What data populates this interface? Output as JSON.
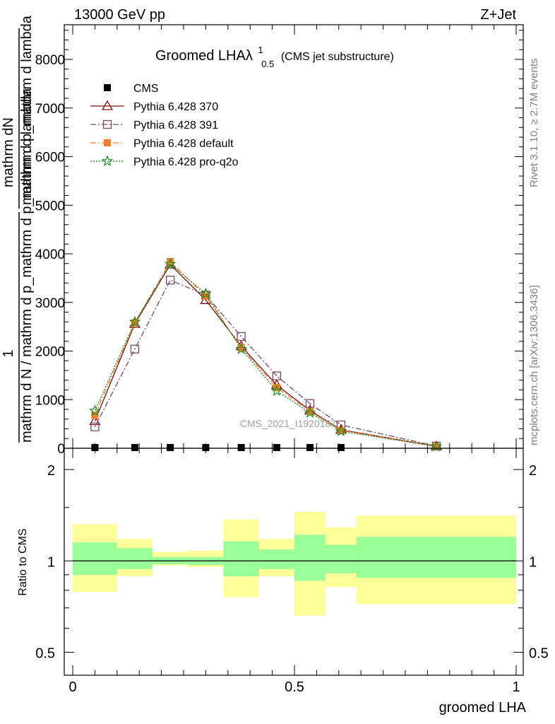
{
  "header": {
    "left": "13000 GeV pp",
    "right": "Z+Jet"
  },
  "side_text": {
    "rivet": "Rivet 3.1.10, ≥ 2.7M events",
    "mcplots": "mcplots.cern.ch [arXiv:1306.3436]"
  },
  "watermark": "CMS_2021_I1920187",
  "chart_data": [
    {
      "type": "line",
      "title": "Groomed LHAλ",
      "title_sup": "1",
      "title_sub": "0.5",
      "subtitle": "(CMS jet substructure)",
      "ylabel_numerator": "mathrm dN",
      "ylabel_denominator_top": "mathrm d p_mathrm d lambda",
      "ylabel_left_numerator": "1",
      "ylabel_left_denominator": "mathrm d N / mathrm d p_mathrm d p_mathrm d lambda",
      "xlim": [
        0,
        1
      ],
      "ylim": [
        0,
        8750
      ],
      "y_ticks": [
        "0",
        "1000",
        "2000",
        "3000",
        "4000",
        "5000",
        "6000",
        "7000",
        "8000"
      ],
      "legend_position": "top-left",
      "series": [
        {
          "name": "CMS",
          "color": "#000000",
          "marker": "filled-square",
          "x": [
            0.05,
            0.14,
            0.22,
            0.3,
            0.38,
            0.46,
            0.535,
            0.605
          ],
          "values": [
            0,
            0,
            0,
            0,
            0,
            0,
            0,
            0
          ]
        },
        {
          "name": "Pythia 6.428 370",
          "color": "#7a1010",
          "marker": "open-triangle",
          "dash": "solid",
          "x": [
            0.05,
            0.14,
            0.22,
            0.3,
            0.38,
            0.46,
            0.535,
            0.605,
            0.82
          ],
          "values": [
            560,
            2560,
            3780,
            3050,
            2100,
            1300,
            780,
            380,
            40
          ]
        },
        {
          "name": "Pythia 6.428 391",
          "color": "#7a4860",
          "marker": "open-square",
          "dash": "dashdot",
          "x": [
            0.05,
            0.14,
            0.22,
            0.3,
            0.38,
            0.46,
            0.535,
            0.605,
            0.82
          ],
          "values": [
            440,
            2040,
            3460,
            3150,
            2300,
            1490,
            920,
            480,
            45
          ]
        },
        {
          "name": "Pythia 6.428 default",
          "color": "#f08030",
          "marker": "filled-square",
          "dash": "dashdot",
          "x": [
            0.05,
            0.14,
            0.22,
            0.3,
            0.38,
            0.46,
            0.535,
            0.605,
            0.82
          ],
          "values": [
            680,
            2580,
            3840,
            3130,
            2070,
            1250,
            760,
            370,
            38
          ]
        },
        {
          "name": "Pythia 6.428 pro-q2o",
          "color": "#1a8a1a",
          "marker": "star",
          "dash": "dotted",
          "x": [
            0.05,
            0.14,
            0.22,
            0.3,
            0.38,
            0.46,
            0.535,
            0.605,
            0.82
          ],
          "values": [
            770,
            2600,
            3790,
            3180,
            2040,
            1180,
            730,
            350,
            36
          ]
        }
      ]
    },
    {
      "type": "area",
      "ylabel": "Ratio to CMS",
      "xlabel": "groomed LHA",
      "xlim": [
        0,
        1
      ],
      "ylim": [
        0.42,
        2.35
      ],
      "x_ticks": [
        "0",
        "0.5",
        "1"
      ],
      "y_ticks": [
        "0.5",
        "1",
        "2"
      ],
      "y_scale": "log",
      "bins": [
        {
          "x0": 0.0,
          "x1": 0.1,
          "inner": [
            0.9,
            1.15
          ],
          "outer": [
            0.79,
            1.32
          ]
        },
        {
          "x0": 0.1,
          "x1": 0.18,
          "inner": [
            0.94,
            1.1
          ],
          "outer": [
            0.89,
            1.18
          ]
        },
        {
          "x0": 0.18,
          "x1": 0.26,
          "inner": [
            0.975,
            1.03
          ],
          "outer": [
            0.965,
            1.07
          ]
        },
        {
          "x0": 0.26,
          "x1": 0.34,
          "inner": [
            0.97,
            1.03
          ],
          "outer": [
            0.955,
            1.08
          ]
        },
        {
          "x0": 0.34,
          "x1": 0.42,
          "inner": [
            0.89,
            1.16
          ],
          "outer": [
            0.76,
            1.37
          ]
        },
        {
          "x0": 0.42,
          "x1": 0.5,
          "inner": [
            0.94,
            1.09
          ],
          "outer": [
            0.89,
            1.18
          ]
        },
        {
          "x0": 0.5,
          "x1": 0.57,
          "inner": [
            0.86,
            1.22
          ],
          "outer": [
            0.66,
            1.45
          ]
        },
        {
          "x0": 0.57,
          "x1": 0.64,
          "inner": [
            0.91,
            1.13
          ],
          "outer": [
            0.82,
            1.29
          ]
        },
        {
          "x0": 0.64,
          "x1": 1.0,
          "inner": [
            0.88,
            1.2
          ],
          "outer": [
            0.72,
            1.41
          ]
        }
      ],
      "reference": 1
    }
  ]
}
